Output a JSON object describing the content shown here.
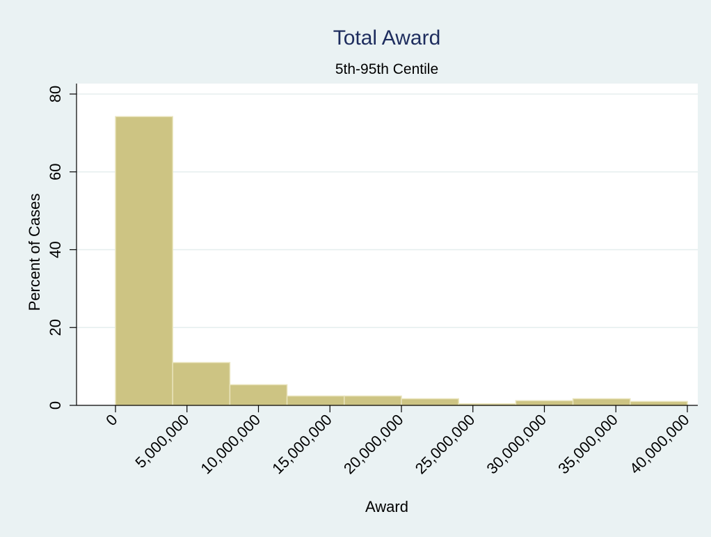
{
  "chart_data": {
    "type": "bar",
    "title": "Total Award",
    "subtitle": "5th-95th Centile",
    "xlabel": "Award",
    "ylabel": "Percent of Cases",
    "xlim": [
      0,
      40000000
    ],
    "ylim": [
      0,
      80
    ],
    "x_ticks": [
      {
        "value": 0,
        "label": "0"
      },
      {
        "value": 5000000,
        "label": "5,000,000"
      },
      {
        "value": 10000000,
        "label": "10,000,000"
      },
      {
        "value": 15000000,
        "label": "15,000,000"
      },
      {
        "value": 20000000,
        "label": "20,000,000"
      },
      {
        "value": 25000000,
        "label": "25,000,000"
      },
      {
        "value": 30000000,
        "label": "30,000,000"
      },
      {
        "value": 35000000,
        "label": "35,000,000"
      },
      {
        "value": 40000000,
        "label": "40,000,000"
      }
    ],
    "y_ticks": [
      {
        "value": 0,
        "label": "0"
      },
      {
        "value": 20,
        "label": "20"
      },
      {
        "value": 40,
        "label": "40"
      },
      {
        "value": 60,
        "label": "60"
      },
      {
        "value": 80,
        "label": "80"
      }
    ],
    "bins": [
      {
        "start": 0,
        "end": 4000000,
        "value": 74.2
      },
      {
        "start": 4000000,
        "end": 8000000,
        "value": 11.0
      },
      {
        "start": 8000000,
        "end": 12000000,
        "value": 5.3
      },
      {
        "start": 12000000,
        "end": 16000000,
        "value": 2.4
      },
      {
        "start": 16000000,
        "end": 20000000,
        "value": 2.4
      },
      {
        "start": 20000000,
        "end": 24000000,
        "value": 1.7
      },
      {
        "start": 24000000,
        "end": 28000000,
        "value": 0.4
      },
      {
        "start": 28000000,
        "end": 32000000,
        "value": 1.2
      },
      {
        "start": 32000000,
        "end": 36000000,
        "value": 1.7
      },
      {
        "start": 36000000,
        "end": 40000000,
        "value": 1.0
      }
    ],
    "grid": true,
    "legend": "none",
    "colors": {
      "background": "#eaf2f3",
      "plot_background": "#ffffff",
      "bar_fill": "#cdc483",
      "bar_stroke": "#e9e4bc",
      "gridline": "#e5eeee",
      "title": "#1e2d5e",
      "text": "#000000"
    }
  }
}
